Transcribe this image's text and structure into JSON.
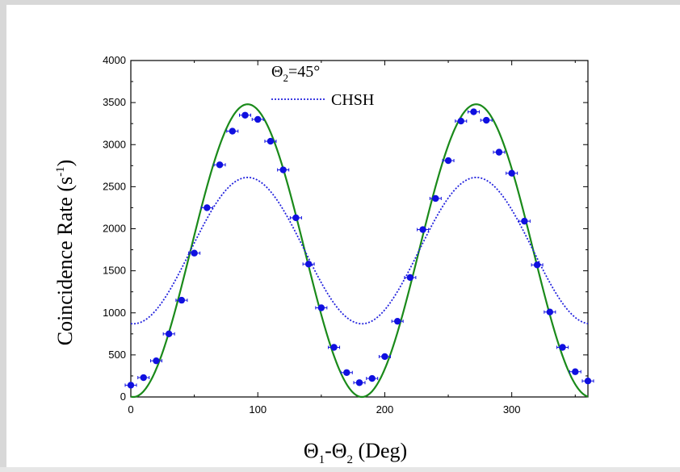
{
  "chart_data": {
    "type": "scatter",
    "title": "",
    "annotation": {
      "prefix": "Θ",
      "sub": "2",
      "suffix": "=45°"
    },
    "xlabel": {
      "parts": [
        "Θ",
        "1",
        "-Θ",
        "2",
        " (Deg)"
      ]
    },
    "ylabel": {
      "main": "Coincidence Rate (s",
      "sup": "-1",
      "close": ")"
    },
    "xlim": [
      0,
      360
    ],
    "ylim": [
      0,
      4000
    ],
    "xticks": [
      0,
      100,
      200,
      300
    ],
    "yticks": [
      0,
      500,
      1000,
      1500,
      2000,
      2500,
      3000,
      3500,
      4000
    ],
    "legend": {
      "entries": [
        "CHSH"
      ],
      "placement": "top-center"
    },
    "grid": false,
    "series": [
      {
        "kind": "points",
        "color": "#1010e0",
        "x": [
          0,
          10,
          20,
          30,
          40,
          50,
          60,
          70,
          80,
          90,
          100,
          110,
          120,
          130,
          140,
          150,
          160,
          170,
          180,
          190,
          200,
          210,
          220,
          230,
          240,
          250,
          260,
          270,
          280,
          290,
          300,
          310,
          320,
          330,
          340,
          350,
          360
        ],
        "y": [
          140,
          230,
          430,
          750,
          1150,
          1710,
          2250,
          2760,
          3160,
          3350,
          3300,
          3040,
          2700,
          2130,
          1580,
          1060,
          590,
          290,
          170,
          220,
          480,
          900,
          1420,
          1990,
          2360,
          2810,
          3280,
          3390,
          3290,
          2910,
          2660,
          2090,
          1570,
          1010,
          590,
          300,
          190
        ]
      },
      {
        "kind": "curve",
        "color": "#1a8a1a",
        "amplitude": 3480,
        "phase_deg": 92
      },
      {
        "name": "CHSH",
        "kind": "curve",
        "color": "#2222dd",
        "dashed": true,
        "min": 870,
        "max": 2610,
        "phase_deg": 92
      }
    ]
  }
}
